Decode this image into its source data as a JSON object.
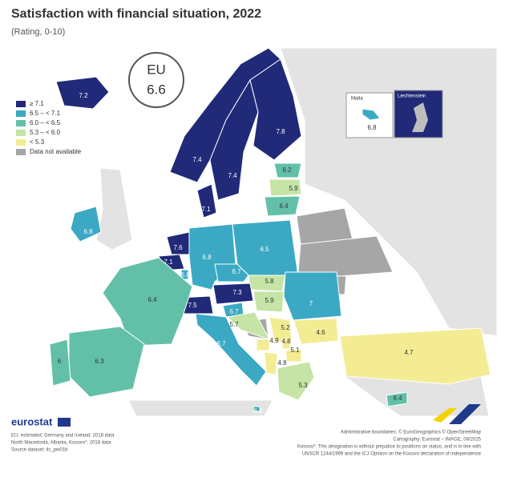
{
  "title": "Satisfaction with financial situation, 2022",
  "subtitle": "(Rating, 0-10)",
  "eu_badge": {
    "label": "EU",
    "value": 6.6
  },
  "legend": [
    {
      "label": "≥ 7.1",
      "color": "#202a78"
    },
    {
      "label": "6.5 – < 7.1",
      "color": "#3ba9c3"
    },
    {
      "label": "6.0 – < 6.5",
      "color": "#63c0a8"
    },
    {
      "label": "5.3 – < 6.0",
      "color": "#c5e4a5"
    },
    {
      "label": "< 5.3",
      "color": "#f3ec93"
    },
    {
      "label": "Data not available",
      "color": "#a6a6a6"
    }
  ],
  "regions": [
    {
      "value": 7.2,
      "color": "#202a78"
    },
    {
      "value": 7.4,
      "color": "#202a78"
    },
    {
      "value": 7.4,
      "color": "#202a78"
    },
    {
      "value": 7.8,
      "color": "#202a78"
    },
    {
      "value": 6.2,
      "color": "#63c0a8"
    },
    {
      "value": 5.9,
      "color": "#c5e4a5"
    },
    {
      "value": 6.4,
      "color": "#63c0a8"
    },
    {
      "value": 7.1,
      "color": "#202a78"
    },
    {
      "value": 6.8,
      "color": "#3ba9c3"
    },
    {
      "value": 7.6,
      "color": "#202a78"
    },
    {
      "value": 7.1,
      "color": "#202a78"
    },
    {
      "value": 6.8,
      "color": "#3ba9c3"
    },
    {
      "value": 6.8,
      "color": "#3ba9c3"
    },
    {
      "value": 6.5,
      "color": "#3ba9c3"
    },
    {
      "value": 6.7,
      "color": "#3ba9c3"
    },
    {
      "value": 5.8,
      "color": "#c5e4a5"
    },
    {
      "value": 7.3,
      "color": "#202a78"
    },
    {
      "value": 7.5,
      "color": "#202a78"
    },
    {
      "value": 5.9,
      "color": "#c5e4a5"
    },
    {
      "value": 7,
      "color": "#3ba9c3"
    },
    {
      "value": 6.7,
      "color": "#3ba9c3"
    },
    {
      "value": 5.7,
      "color": "#c5e4a5"
    },
    {
      "value": 6.7,
      "color": "#3ba9c3"
    },
    {
      "value": 6.4,
      "color": "#63c0a8"
    },
    {
      "value": 6.3,
      "color": "#63c0a8"
    },
    {
      "value": 6,
      "color": "#63c0a8"
    },
    {
      "value": 5.2,
      "color": "#f3ec93"
    },
    {
      "value": 4.6,
      "color": "#f3ec93"
    },
    {
      "value": 4.9,
      "color": "#f3ec93"
    },
    {
      "value": 4.8,
      "color": "#f3ec93"
    },
    {
      "value": 5.1,
      "color": "#f3ec93"
    },
    {
      "value": 4.8,
      "color": "#f3ec93"
    },
    {
      "value": 5.3,
      "color": "#c5e4a5"
    },
    {
      "value": 4.7,
      "color": "#f3ec93"
    },
    {
      "value": 6.4,
      "color": "#63c0a8"
    },
    {
      "value": 6.8,
      "color": "#3ba9c3"
    }
  ],
  "insets": [
    {
      "label": "Malta",
      "value": 6.8,
      "color": "#3ba9c3"
    },
    {
      "label": "Liechtenstein"
    }
  ],
  "footer": {
    "logo": "eurostat",
    "notes_left": [
      "EU: estimated; Germany and Iceland: 2018 data",
      "North Macedonia, Albania, Kosovo*: 2018 data",
      "Source dataset: ilc_pw01b"
    ],
    "notes_right": [
      "Administrative boundaries: © EuroGeographics © OpenStreetMap",
      "Cartography: Eurostat – IMAGE, 08/2025",
      "Kosovo*: This designation is without prejudice to positions on status, and is in line with",
      "UNSCR 1244/1999 and the ICJ Opinion on the Kosovo declaration of independence"
    ]
  }
}
